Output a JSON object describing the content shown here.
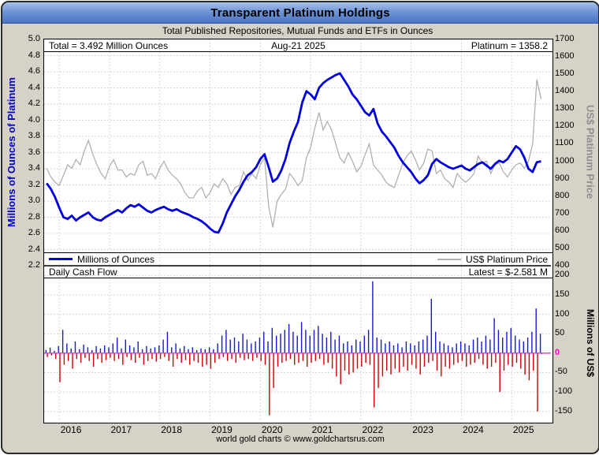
{
  "window": {
    "title": "Transparent Platinum Holdings",
    "subtitle": "Total Published Repositories, Mutual Funds and ETFs in Ounces",
    "footer": "world gold charts © www.goldchartsrus.com"
  },
  "colors": {
    "holdings_line": "#0000e0",
    "price_line": "#b0b0b0",
    "inflow_bar": "#1a1acc",
    "outflow_bar": "#cc0000",
    "zero_line": "#ff29c8",
    "zero_tick": "#ff00cc",
    "left_axis_label": "#0000cc",
    "right_axis_label_top": "#8f8f8f",
    "grid": "#d9d9d9"
  },
  "top_chart": {
    "annotation_left": "Total = 3.492 Million Ounces",
    "annotation_center": "Aug-21  2025",
    "annotation_right": "Platinum = 1358.2",
    "legend_left": "Millions of Ounces",
    "legend_right": "US$ Platinum Price",
    "y_left": {
      "label": "Millions of Ounces of Platinum",
      "min": 2.2,
      "max": 5.0,
      "ticks": [
        "5.0",
        "4.8",
        "4.6",
        "4.4",
        "4.2",
        "4.0",
        "3.8",
        "3.6",
        "3.4",
        "3.2",
        "3.0",
        "2.8",
        "2.6",
        "2.4",
        "2.2"
      ]
    },
    "y_right": {
      "label": "US$ Platinum Price",
      "min": 400,
      "max": 1700,
      "ticks": [
        "1700",
        "1600",
        "1500",
        "1400",
        "1300",
        "1200",
        "1100",
        "1000",
        "900",
        "800",
        "700",
        "600",
        "500",
        "400"
      ]
    }
  },
  "bottom_chart": {
    "header_left": "Daily Cash Flow",
    "header_right": "Latest = $-2.581 M",
    "y_right": {
      "label": "Millions of US$",
      "min": -175,
      "max": 225,
      "ticks": [
        "200",
        "150",
        "100",
        "50",
        "0",
        "-50",
        "-100",
        "-150"
      ]
    }
  },
  "x_axis": {
    "min": 2015.7,
    "max": 2025.78,
    "ticks": [
      "2016",
      "2017",
      "2018",
      "2019",
      "2020",
      "2021",
      "2022",
      "2023",
      "2024",
      "2025"
    ]
  },
  "chart_data": [
    {
      "type": "line",
      "title": "Transparent Platinum Holdings",
      "subtitle": "Total Published Repositories, Mutual Funds and ETFs in Ounces",
      "x_start": 2015.75,
      "x_step": 0.0833333,
      "x_range": [
        2015.7,
        2025.78
      ],
      "y_left_range": [
        2.2,
        5.0
      ],
      "y_right_range": [
        400,
        1700
      ],
      "annotations": [
        "Total = 3.492 Million Ounces",
        "Aug-21  2025",
        "Platinum = 1358.2"
      ],
      "series": [
        {
          "name": "Millions of Ounces",
          "axis": "left",
          "color": "#0000e0",
          "values": [
            3.22,
            3.15,
            3.05,
            2.92,
            2.8,
            2.78,
            2.82,
            2.76,
            2.8,
            2.83,
            2.86,
            2.8,
            2.77,
            2.76,
            2.8,
            2.83,
            2.86,
            2.89,
            2.86,
            2.91,
            2.95,
            2.93,
            2.96,
            2.92,
            2.88,
            2.86,
            2.89,
            2.91,
            2.93,
            2.9,
            2.88,
            2.9,
            2.87,
            2.85,
            2.83,
            2.8,
            2.78,
            2.75,
            2.71,
            2.66,
            2.62,
            2.61,
            2.72,
            2.86,
            2.96,
            3.06,
            3.14,
            3.24,
            3.32,
            3.36,
            3.42,
            3.52,
            3.58,
            3.42,
            3.24,
            3.28,
            3.38,
            3.52,
            3.72,
            3.86,
            3.98,
            4.22,
            4.36,
            4.32,
            4.26,
            4.4,
            4.46,
            4.5,
            4.53,
            4.56,
            4.58,
            4.5,
            4.42,
            4.32,
            4.26,
            4.18,
            4.1,
            4.06,
            4.14,
            3.96,
            3.86,
            3.8,
            3.73,
            3.66,
            3.56,
            3.48,
            3.42,
            3.36,
            3.28,
            3.22,
            3.26,
            3.32,
            3.46,
            3.52,
            3.48,
            3.45,
            3.42,
            3.4,
            3.42,
            3.44,
            3.4,
            3.38,
            3.42,
            3.46,
            3.48,
            3.44,
            3.4,
            3.46,
            3.5,
            3.48,
            3.52,
            3.6,
            3.68,
            3.64,
            3.54,
            3.4,
            3.36,
            3.48,
            3.492
          ]
        },
        {
          "name": "US$ Platinum Price",
          "axis": "right",
          "color": "#b0b0b0",
          "values": [
            960,
            910,
            880,
            860,
            920,
            980,
            960,
            1010,
            980,
            1060,
            1120,
            1040,
            980,
            930,
            900,
            970,
            1010,
            950,
            950,
            910,
            930,
            920,
            980,
            1000,
            920,
            930,
            900,
            960,
            1000,
            950,
            920,
            900,
            870,
            820,
            790,
            790,
            830,
            850,
            790,
            820,
            870,
            850,
            900,
            870,
            810,
            850,
            860,
            940,
            890,
            930,
            900,
            980,
            1020,
            740,
            620,
            770,
            810,
            840,
            930,
            900,
            860,
            890,
            1020,
            1080,
            1190,
            1280,
            1180,
            1230,
            1180,
            1100,
            1020,
            990,
            1050,
            1000,
            940,
            970,
            1040,
            1100,
            980,
            950,
            920,
            880,
            860,
            850,
            920,
            990,
            1030,
            1060,
            1010,
            950,
            990,
            1070,
            1060,
            930,
            950,
            900,
            880,
            850,
            930,
            900,
            880,
            900,
            930,
            1030,
            990,
            1000,
            930,
            980,
            990,
            940,
            910,
            950,
            980,
            990,
            960,
            1000,
            1100,
            1470,
            1358.2
          ]
        }
      ]
    },
    {
      "type": "bar",
      "title": "Daily Cash Flow",
      "latest": -2.581,
      "ylabel": "Millions of US$",
      "y_range": [
        -175,
        225
      ],
      "x_start": 2015.75,
      "x_step": 0.0833333,
      "inflow": [
        8,
        14,
        6,
        18,
        60,
        25,
        12,
        30,
        10,
        22,
        15,
        8,
        18,
        12,
        20,
        15,
        25,
        40,
        12,
        35,
        20,
        15,
        30,
        10,
        18,
        12,
        15,
        20,
        35,
        55,
        15,
        25,
        12,
        18,
        10,
        15,
        8,
        12,
        10,
        15,
        10,
        25,
        45,
        60,
        35,
        40,
        30,
        50,
        35,
        25,
        30,
        40,
        55,
        30,
        65,
        45,
        50,
        60,
        75,
        55,
        45,
        80,
        60,
        45,
        60,
        70,
        50,
        40,
        55,
        35,
        45,
        25,
        30,
        20,
        35,
        30,
        45,
        60,
        185,
        40,
        35,
        25,
        30,
        20,
        25,
        15,
        30,
        25,
        20,
        30,
        35,
        45,
        140,
        55,
        30,
        25,
        20,
        15,
        25,
        30,
        25,
        20,
        35,
        40,
        30,
        45,
        35,
        90,
        60,
        40,
        55,
        65,
        45,
        35,
        30,
        40,
        55,
        115,
        50
      ],
      "outflow": [
        -10,
        -6,
        -15,
        -75,
        -30,
        -20,
        -40,
        -15,
        -25,
        -12,
        -20,
        -35,
        -15,
        -25,
        -18,
        -12,
        -20,
        -15,
        -30,
        -10,
        -18,
        -25,
        -12,
        -30,
        -20,
        -15,
        -22,
        -15,
        -10,
        -20,
        -35,
        -15,
        -25,
        -18,
        -30,
        -20,
        -25,
        -35,
        -30,
        -40,
        -25,
        -15,
        -10,
        -20,
        -15,
        -25,
        -12,
        -18,
        -15,
        -20,
        -12,
        -20,
        -30,
        -160,
        -90,
        -35,
        -25,
        -20,
        -15,
        -30,
        -25,
        -20,
        -35,
        -25,
        -20,
        -15,
        -30,
        -25,
        -40,
        -60,
        -80,
        -45,
        -55,
        -50,
        -40,
        -35,
        -25,
        -30,
        -140,
        -90,
        -60,
        -45,
        -55,
        -40,
        -50,
        -35,
        -45,
        -30,
        -40,
        -55,
        -35,
        -25,
        -20,
        -45,
        -60,
        -35,
        -40,
        -30,
        -25,
        -20,
        -35,
        -30,
        -25,
        -15,
        -30,
        -40,
        -35,
        -25,
        -100,
        -45,
        -30,
        -35,
        -25,
        -40,
        -55,
        -70,
        -45,
        -150,
        -2.581
      ]
    }
  ]
}
